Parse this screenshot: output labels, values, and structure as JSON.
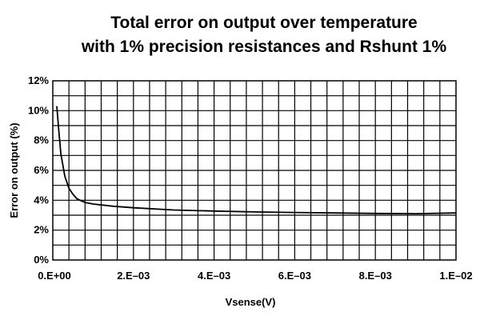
{
  "chart_data": {
    "type": "line",
    "title": "Total error on output over temperature",
    "subtitle": "with 1% precision resistances and Rshunt 1%",
    "xlabel": "Vsense(V)",
    "ylabel": "Error on output (%)",
    "xlim": [
      0,
      0.01
    ],
    "ylim": [
      0,
      12
    ],
    "x_ticks": [
      0,
      0.002,
      0.004,
      0.006,
      0.008,
      0.01
    ],
    "x_tick_labels": [
      "0.E+00",
      "2.E–03",
      "4.E–03",
      "6.E–03",
      "8.E–03",
      "1.E–02"
    ],
    "y_ticks": [
      0,
      2,
      4,
      6,
      8,
      10,
      12
    ],
    "y_tick_labels": [
      "0%",
      "2%",
      "4%",
      "6%",
      "8%",
      "10%",
      "12%"
    ],
    "grid": true,
    "line_color": "#000000",
    "series": [
      {
        "x": [
          0.0001,
          0.00015,
          0.0002,
          0.0003,
          0.0004,
          0.0005,
          0.0006,
          0.0008,
          0.001,
          0.0015,
          0.002,
          0.003,
          0.004,
          0.005,
          0.006,
          0.007,
          0.008,
          0.009,
          0.01
        ],
        "values": [
          10.3,
          8.6,
          7.1,
          5.6,
          4.8,
          4.4,
          4.1,
          3.85,
          3.75,
          3.6,
          3.5,
          3.35,
          3.28,
          3.22,
          3.18,
          3.15,
          3.12,
          3.1,
          3.15
        ]
      }
    ]
  }
}
